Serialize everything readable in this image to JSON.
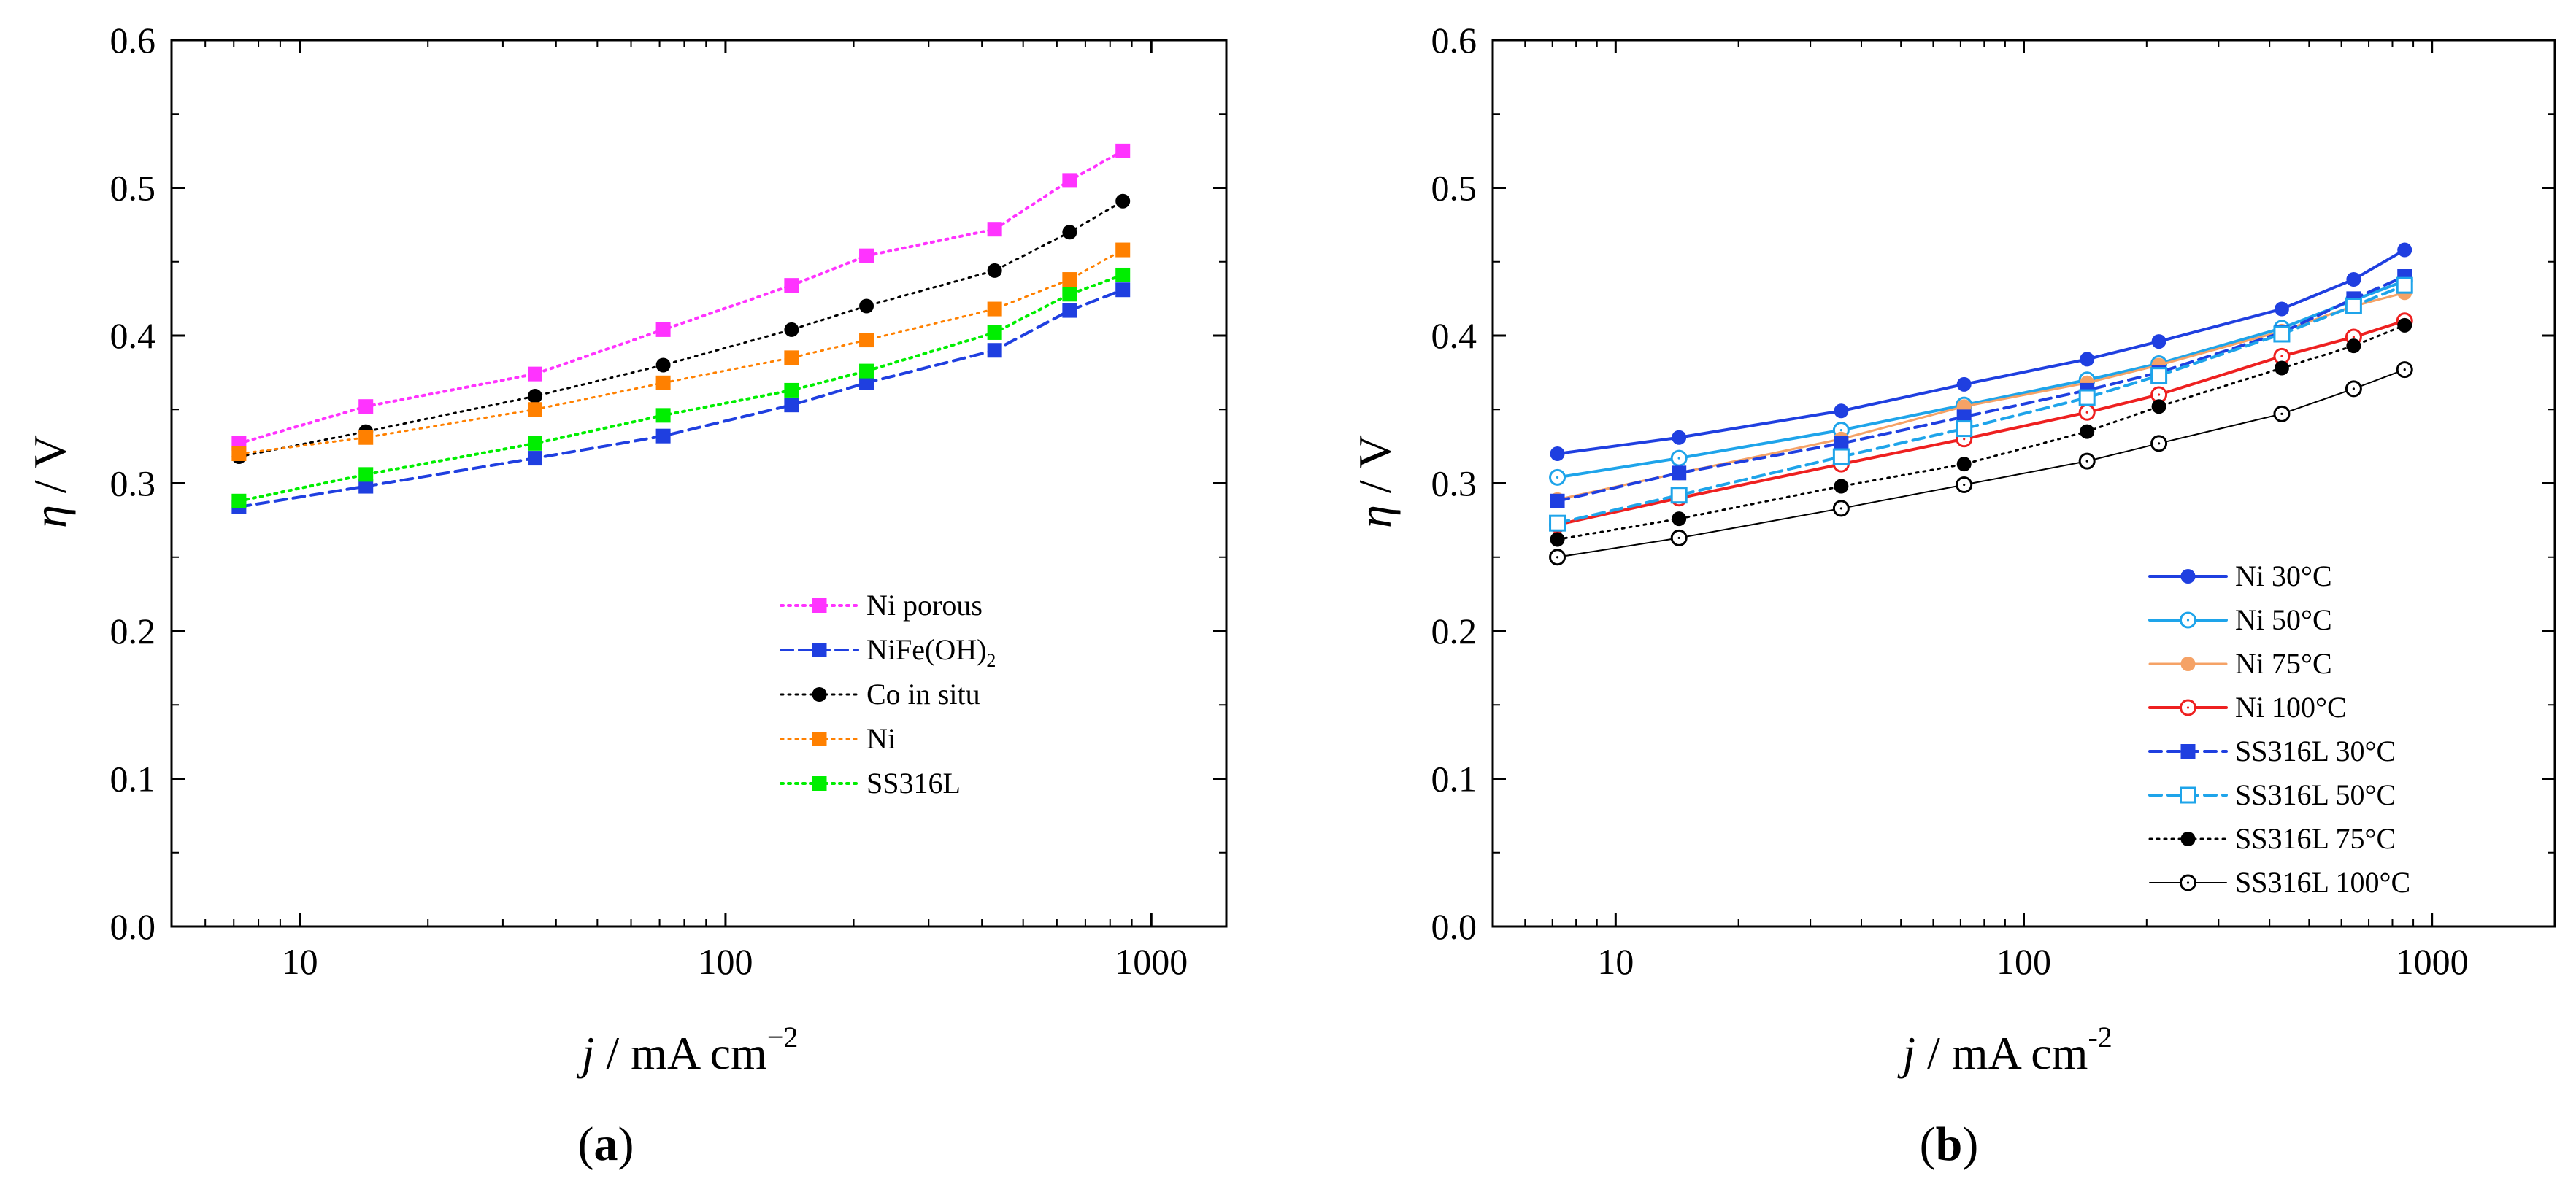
{
  "chart_data": [
    {
      "type": "line",
      "panel_label": {
        "open": "(",
        "letter": "a",
        "close": ")"
      },
      "xscale": "log",
      "xlim": [
        5,
        1500
      ],
      "ylim": [
        0.0,
        0.6
      ],
      "xticks": [
        {
          "value": 10,
          "label": "10"
        },
        {
          "value": 100,
          "label": "100"
        },
        {
          "value": 1000,
          "label": "1000"
        }
      ],
      "yticks": [
        {
          "value": 0.0,
          "label": "0.0"
        },
        {
          "value": 0.1,
          "label": "0.1"
        },
        {
          "value": 0.2,
          "label": "0.2"
        },
        {
          "value": 0.3,
          "label": "0.3"
        },
        {
          "value": 0.4,
          "label": "0.4"
        },
        {
          "value": 0.5,
          "label": "0.5"
        },
        {
          "value": 0.6,
          "label": "0.6"
        }
      ],
      "xlabel": {
        "var": "j",
        "rest": " / mA cm",
        "sup": "−2"
      },
      "ylabel": {
        "var": "η",
        "rest": " / V"
      },
      "legend_position": "lower-right",
      "x": [
        7.2,
        14.3,
        35.7,
        71.4,
        142.9,
        214.3,
        428.6,
        642.9,
        857.1
      ],
      "series": [
        {
          "name": "Ni porous",
          "sub": "",
          "color": "#ff33ff",
          "line": "dotted",
          "line_width": 4,
          "marker": "square",
          "filled": true,
          "values": [
            0.327,
            0.352,
            0.374,
            0.404,
            0.434,
            0.454,
            0.472,
            0.505,
            0.525
          ]
        },
        {
          "name": "NiFe(OH)",
          "sub": "2",
          "color": "#1f3fe0",
          "line": "dashed",
          "line_width": 4,
          "marker": "square",
          "filled": true,
          "values": [
            0.284,
            0.298,
            0.317,
            0.332,
            0.353,
            0.368,
            0.39,
            0.417,
            0.431
          ]
        },
        {
          "name": "Co in situ",
          "sub": "",
          "color": "#000000",
          "line": "dotted",
          "line_width": 3,
          "marker": "circle",
          "filled": true,
          "values": [
            0.318,
            0.335,
            0.359,
            0.38,
            0.404,
            0.42,
            0.444,
            0.47,
            0.491
          ]
        },
        {
          "name": "Ni",
          "sub": "",
          "color": "#ff8000",
          "line": "dotted",
          "line_width": 3,
          "marker": "square",
          "filled": true,
          "values": [
            0.32,
            0.331,
            0.35,
            0.368,
            0.385,
            0.397,
            0.418,
            0.438,
            0.458
          ]
        },
        {
          "name": "SS316L",
          "sub": "",
          "color": "#00ee00",
          "line": "dotted",
          "line_width": 4,
          "marker": "square",
          "filled": true,
          "values": [
            0.288,
            0.306,
            0.327,
            0.346,
            0.363,
            0.376,
            0.402,
            0.428,
            0.441
          ]
        }
      ]
    },
    {
      "type": "line",
      "panel_label": {
        "open": "(",
        "letter": "b",
        "close": ")"
      },
      "xscale": "log",
      "xlim": [
        5,
        2000
      ],
      "ylim": [
        0.0,
        0.6
      ],
      "xticks": [
        {
          "value": 10,
          "label": "10"
        },
        {
          "value": 100,
          "label": "100"
        },
        {
          "value": 1000,
          "label": "1000"
        }
      ],
      "yticks": [
        {
          "value": 0.0,
          "label": "0.0"
        },
        {
          "value": 0.1,
          "label": "0.1"
        },
        {
          "value": 0.2,
          "label": "0.2"
        },
        {
          "value": 0.3,
          "label": "0.3"
        },
        {
          "value": 0.4,
          "label": "0.4"
        },
        {
          "value": 0.5,
          "label": "0.5"
        },
        {
          "value": 0.6,
          "label": "0.6"
        }
      ],
      "xlabel": {
        "var": "j",
        "rest": " / mA cm",
        "sup": "-2"
      },
      "ylabel": {
        "var": "η",
        "rest": " / V"
      },
      "legend_position": "lower-right",
      "x": [
        7.2,
        14.3,
        35.7,
        71.4,
        142.9,
        214.3,
        428.6,
        642.9,
        857.1
      ],
      "series": [
        {
          "name": "Ni 30°C",
          "sub": "",
          "color": "#1f3fe0",
          "line": "solid",
          "line_width": 4,
          "marker": "circle",
          "filled": true,
          "values": [
            0.32,
            0.331,
            0.349,
            0.367,
            0.384,
            0.396,
            0.418,
            0.438,
            0.458
          ]
        },
        {
          "name": "Ni 50°C",
          "sub": "",
          "color": "#1ea4ea",
          "line": "solid",
          "line_width": 4,
          "marker": "circle",
          "filled": false,
          "values": [
            0.304,
            0.317,
            0.336,
            0.353,
            0.37,
            0.381,
            0.405,
            0.424,
            0.437
          ]
        },
        {
          "name": "Ni 75°C",
          "sub": "",
          "color": "#f5a266",
          "line": "solid",
          "line_width": 3,
          "marker": "circle",
          "filled": true,
          "values": [
            0.289,
            0.307,
            0.33,
            0.352,
            0.368,
            0.38,
            0.403,
            0.42,
            0.429
          ]
        },
        {
          "name": "Ni 100°C",
          "sub": "",
          "color": "#ee2020",
          "line": "solid",
          "line_width": 4,
          "marker": "circle",
          "filled": false,
          "values": [
            0.272,
            0.29,
            0.313,
            0.33,
            0.348,
            0.36,
            0.386,
            0.399,
            0.41
          ]
        },
        {
          "name": "SS316L 30°C",
          "sub": "",
          "color": "#1f3fe0",
          "line": "dashed",
          "line_width": 4,
          "marker": "square",
          "filled": true,
          "values": [
            0.288,
            0.307,
            0.327,
            0.345,
            0.363,
            0.375,
            0.402,
            0.425,
            0.44
          ]
        },
        {
          "name": "SS316L 50°C",
          "sub": "",
          "color": "#1ea4ea",
          "line": "dashed",
          "line_width": 4,
          "marker": "square",
          "filled": false,
          "values": [
            0.273,
            0.292,
            0.318,
            0.337,
            0.358,
            0.373,
            0.401,
            0.42,
            0.434
          ]
        },
        {
          "name": "SS316L 75°C",
          "sub": "",
          "color": "#000000",
          "line": "dotted",
          "line_width": 3,
          "marker": "circle",
          "filled": true,
          "values": [
            0.262,
            0.276,
            0.298,
            0.313,
            0.335,
            0.352,
            0.378,
            0.393,
            0.407
          ]
        },
        {
          "name": "SS316L 100°C",
          "sub": "",
          "color": "#000000",
          "line": "solid",
          "line_width": 2,
          "marker": "circle",
          "filled": false,
          "values": [
            0.25,
            0.263,
            0.283,
            0.299,
            0.315,
            0.327,
            0.347,
            0.364,
            0.377
          ]
        }
      ]
    }
  ]
}
